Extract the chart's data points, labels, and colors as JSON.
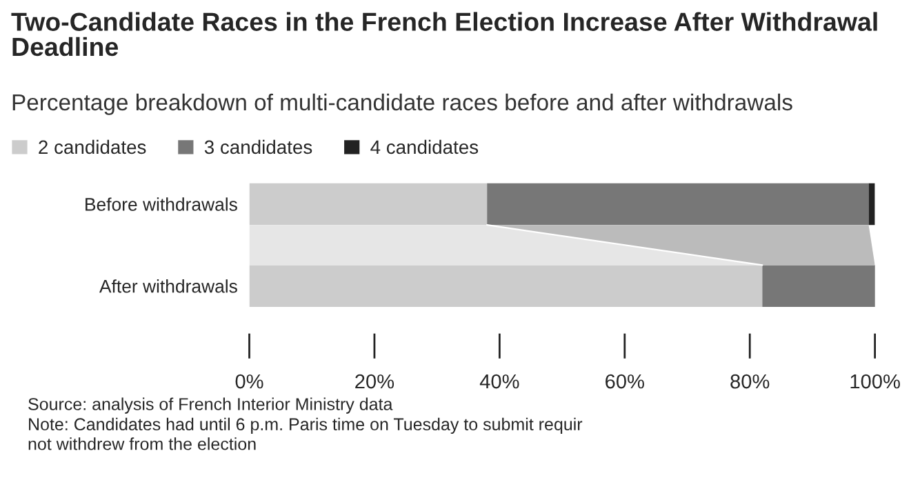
{
  "chart_data": {
    "type": "bar",
    "orientation": "horizontal",
    "stacked": true,
    "title": "Two-Candidate Races in the French Election Increase After Withdrawal Deadline",
    "subtitle": "Percentage breakdown of multi-candidate races before and after withdrawals",
    "categories": [
      "Before withdrawals",
      "After withdrawals"
    ],
    "series": [
      {
        "name": "2 candidates",
        "color": "#cccccc",
        "values": [
          38,
          82
        ]
      },
      {
        "name": "3 candidates",
        "color": "#777777",
        "values": [
          61,
          18
        ]
      },
      {
        "name": "4 candidates",
        "color": "#222222",
        "values": [
          1,
          0.3
        ]
      }
    ],
    "xlim": [
      0,
      100
    ],
    "xticks": [
      {
        "value": 0,
        "label": "0%"
      },
      {
        "value": 20,
        "label": "20%"
      },
      {
        "value": 40,
        "label": "40%"
      },
      {
        "value": 60,
        "label": "60%"
      },
      {
        "value": 80,
        "label": "80%"
      },
      {
        "value": 100,
        "label": "100%"
      }
    ],
    "grid": false,
    "legend": "top left",
    "annotations": [
      "Source: analysis of French Interior Ministry data",
      "Note: Candidates had until 6 p.m. Paris time on Tuesday to submit requir",
      "not withdrew from the election"
    ]
  }
}
